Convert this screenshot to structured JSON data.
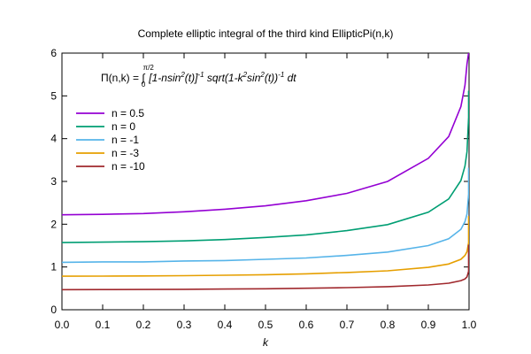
{
  "chart_data": {
    "type": "line",
    "title": "Complete elliptic integral of the third kind EllipticPi(n,k)",
    "xlabel": "k",
    "ylabel": "",
    "xlim": [
      0,
      1
    ],
    "ylim": [
      0,
      6
    ],
    "xticks": [
      "0.0",
      "0.1",
      "0.2",
      "0.3",
      "0.4",
      "0.5",
      "0.6",
      "0.7",
      "0.8",
      "0.9",
      "1.0"
    ],
    "yticks": [
      "0",
      "1",
      "2",
      "3",
      "4",
      "5",
      "6"
    ],
    "grid": false,
    "legend_position": "top-left",
    "annotation": {
      "lhs": "Π(n,k) = ∫",
      "lower": "0",
      "upper": "π/2",
      "p1": "[1-nsin",
      "p1sup": "2",
      "p2": "(t)]",
      "p2sup": "-1",
      "p3": " sqrt(1-k",
      "p3sup": "2",
      "p4": "sin",
      "p4sup": "2",
      "p5": "(t))",
      "p5sup": "-1",
      "p6": " dt"
    },
    "x": [
      0,
      0.1,
      0.2,
      0.3,
      0.4,
      0.5,
      0.6,
      0.7,
      0.8,
      0.9,
      0.95,
      0.98,
      0.99,
      0.995,
      0.999
    ],
    "series": [
      {
        "name": "n = 0.5",
        "color": "#9400d3",
        "values": [
          2.22,
          2.23,
          2.25,
          2.29,
          2.35,
          2.43,
          2.55,
          2.72,
          3.0,
          3.54,
          4.05,
          4.75,
          5.25,
          5.75,
          6.0
        ]
      },
      {
        "name": "n = 0",
        "color": "#009e73",
        "values": [
          1.57,
          1.58,
          1.59,
          1.61,
          1.64,
          1.69,
          1.75,
          1.85,
          1.99,
          2.28,
          2.59,
          3.02,
          3.36,
          3.7,
          4.5
        ]
      },
      {
        "name": "n = -1",
        "color": "#56b4e9",
        "values": [
          1.11,
          1.12,
          1.12,
          1.14,
          1.15,
          1.18,
          1.21,
          1.27,
          1.35,
          1.5,
          1.66,
          1.88,
          2.06,
          2.24,
          2.7
        ]
      },
      {
        "name": "n = -3",
        "color": "#e69f00",
        "values": [
          0.785,
          0.787,
          0.79,
          0.797,
          0.807,
          0.82,
          0.84,
          0.87,
          0.91,
          0.99,
          1.07,
          1.18,
          1.27,
          1.36,
          1.57
        ]
      },
      {
        "name": "n = -10",
        "color": "#a0282d",
        "values": [
          0.47,
          0.472,
          0.474,
          0.478,
          0.484,
          0.491,
          0.502,
          0.518,
          0.54,
          0.58,
          0.62,
          0.68,
          0.72,
          0.77,
          0.9
        ]
      }
    ]
  }
}
